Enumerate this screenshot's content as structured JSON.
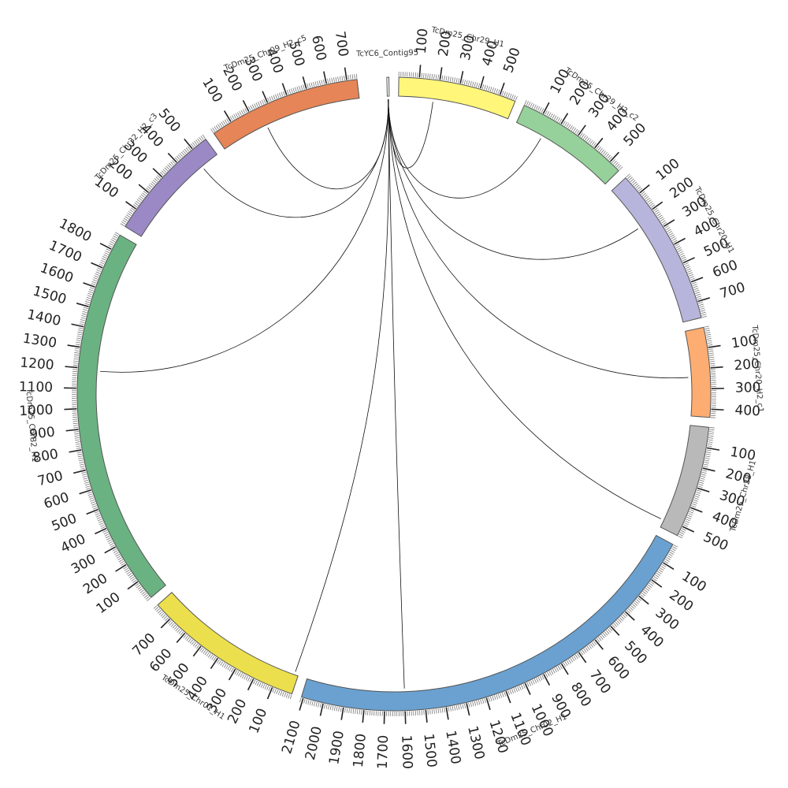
{
  "diagram": {
    "type": "circos",
    "unit_per_tick": 100,
    "segments": [
      {
        "name": "TcYC6_Contig95",
        "length": 10,
        "color": "#ffffff"
      },
      {
        "name": "TcDm25_Chr29_H1",
        "length": 580,
        "color": "#fff67a"
      },
      {
        "name": "TcDm25_Chr29_H2_c2",
        "length": 560,
        "color": "#96d09a"
      },
      {
        "name": "TcDm25_Chr20_H1",
        "length": 780,
        "color": "#b7b5db"
      },
      {
        "name": "TcDm25_Chr20_H2_c1",
        "length": 440,
        "color": "#fdad72"
      },
      {
        "name": "TcDm25_Chr28_H1",
        "length": 550,
        "color": "#b9b9b9"
      },
      {
        "name": "TcDm25_Chr02_H1",
        "length": 2110,
        "color": "#6aa1d0"
      },
      {
        "name": "TcDm25_Chr01_H1",
        "length": 790,
        "color": "#ebdf4d"
      },
      {
        "name": "TcDm25_Chr32_H1",
        "length": 1880,
        "color": "#6ab282"
      },
      {
        "name": "TcDm25_Chr32_H2_c3",
        "length": 580,
        "color": "#9a89c5"
      },
      {
        "name": "TcDm25_Chr09_H2_c5",
        "length": 750,
        "color": "#e68557"
      }
    ],
    "links": [
      {
        "to": "TcDm25_Chr29_H1",
        "pos": 180
      },
      {
        "to": "TcDm25_Chr29_H2_c2",
        "pos": 150
      },
      {
        "to": "TcDm25_Chr20_H1",
        "pos": 240
      },
      {
        "to": "TcDm25_Chr20_H2_c1",
        "pos": 240
      },
      {
        "to": "TcDm25_Chr28_H1",
        "pos": 510
      },
      {
        "to": "TcDm25_Chr02_H1",
        "pos": 1600
      },
      {
        "to": "TcDm25_Chr01_H1",
        "pos": 20
      },
      {
        "to": "TcDm25_Chr32_H1",
        "pos": 1190
      },
      {
        "to": "TcDm25_Chr32_H2_c3",
        "pos": 480
      },
      {
        "to": "TcDm25_Chr09_H2_c5",
        "pos": 250
      }
    ]
  }
}
